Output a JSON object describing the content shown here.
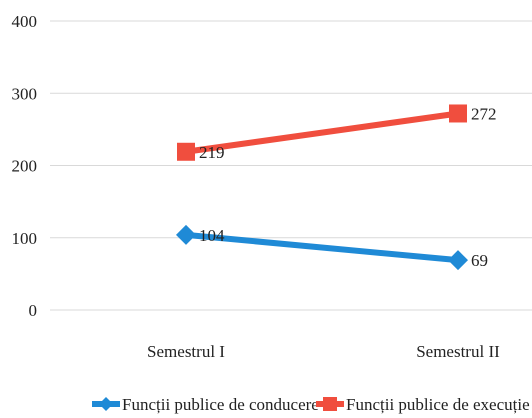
{
  "chart_data": {
    "type": "line",
    "title": "",
    "xlabel": "",
    "ylabel": "",
    "ylim": [
      0,
      400
    ],
    "yticks": [
      0,
      100,
      200,
      300,
      400
    ],
    "grid": true,
    "legend_position": "bottom",
    "categories": [
      "Semestrul I",
      "Semestrul II"
    ],
    "series": [
      {
        "name": "Funcții publice de conducere",
        "values": [
          104,
          69
        ],
        "labels": [
          "104",
          "69"
        ],
        "color": "#1f8ad6",
        "marker": "diamond"
      },
      {
        "name": "Funcții publice de execuție",
        "values": [
          219,
          272
        ],
        "labels": [
          "219",
          "272"
        ],
        "color": "#f04e3e",
        "marker": "square"
      }
    ]
  }
}
